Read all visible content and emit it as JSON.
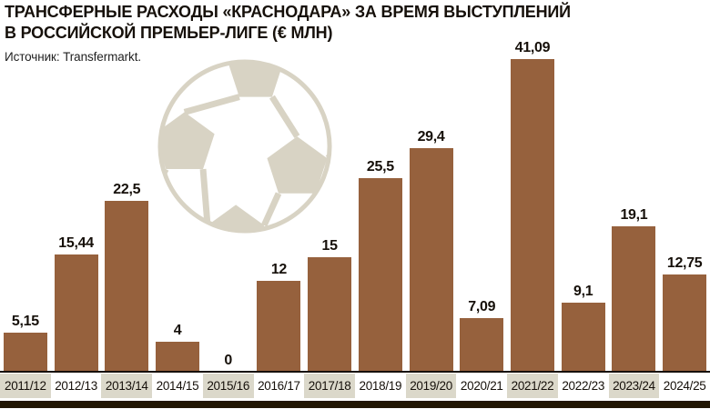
{
  "header": {
    "title_line1": "ТРАНСФЕРНЫЕ РАСХОДЫ «КРАСНОДАРА» ЗА ВРЕМЯ ВЫСТУПЛЕНИЙ",
    "title_line2": "В РОССИЙСКОЙ ПРЕМЬЕР-ЛИГЕ (€ МЛН)",
    "source": "Источник: Transfermarkt."
  },
  "chart_data": {
    "type": "bar",
    "title": "ТРАНСФЕРНЫЕ РАСХОДЫ «КРАСНОДАРА» ЗА ВРЕМЯ ВЫСТУПЛЕНИЙ В РОССИЙСКОЙ ПРЕМЬЕР-ЛИГЕ (€ МЛН)",
    "source": "Источник: Transfermarkt.",
    "categories": [
      "2011/12",
      "2012/13",
      "2013/14",
      "2014/15",
      "2015/16",
      "2016/17",
      "2017/18",
      "2018/19",
      "2019/20",
      "2020/21",
      "2021/22",
      "2022/23",
      "2023/24",
      "2024/25"
    ],
    "values": [
      5.15,
      15.44,
      22.5,
      4,
      0,
      12,
      15,
      25.5,
      29.4,
      7.09,
      41.09,
      9.1,
      19.1,
      12.75
    ],
    "decimal_separator": ",",
    "xlabel": "",
    "ylabel": "",
    "ylim": [
      0,
      42
    ],
    "grid": false,
    "legend": "none",
    "bar_color": "#96613D",
    "alt_cell_color": "#DBD8CA",
    "axis_line_color": "#17100a",
    "accent_strip_color": "#211502",
    "watermark": "soccer-ball",
    "watermark_color": "#D8D3C4"
  }
}
